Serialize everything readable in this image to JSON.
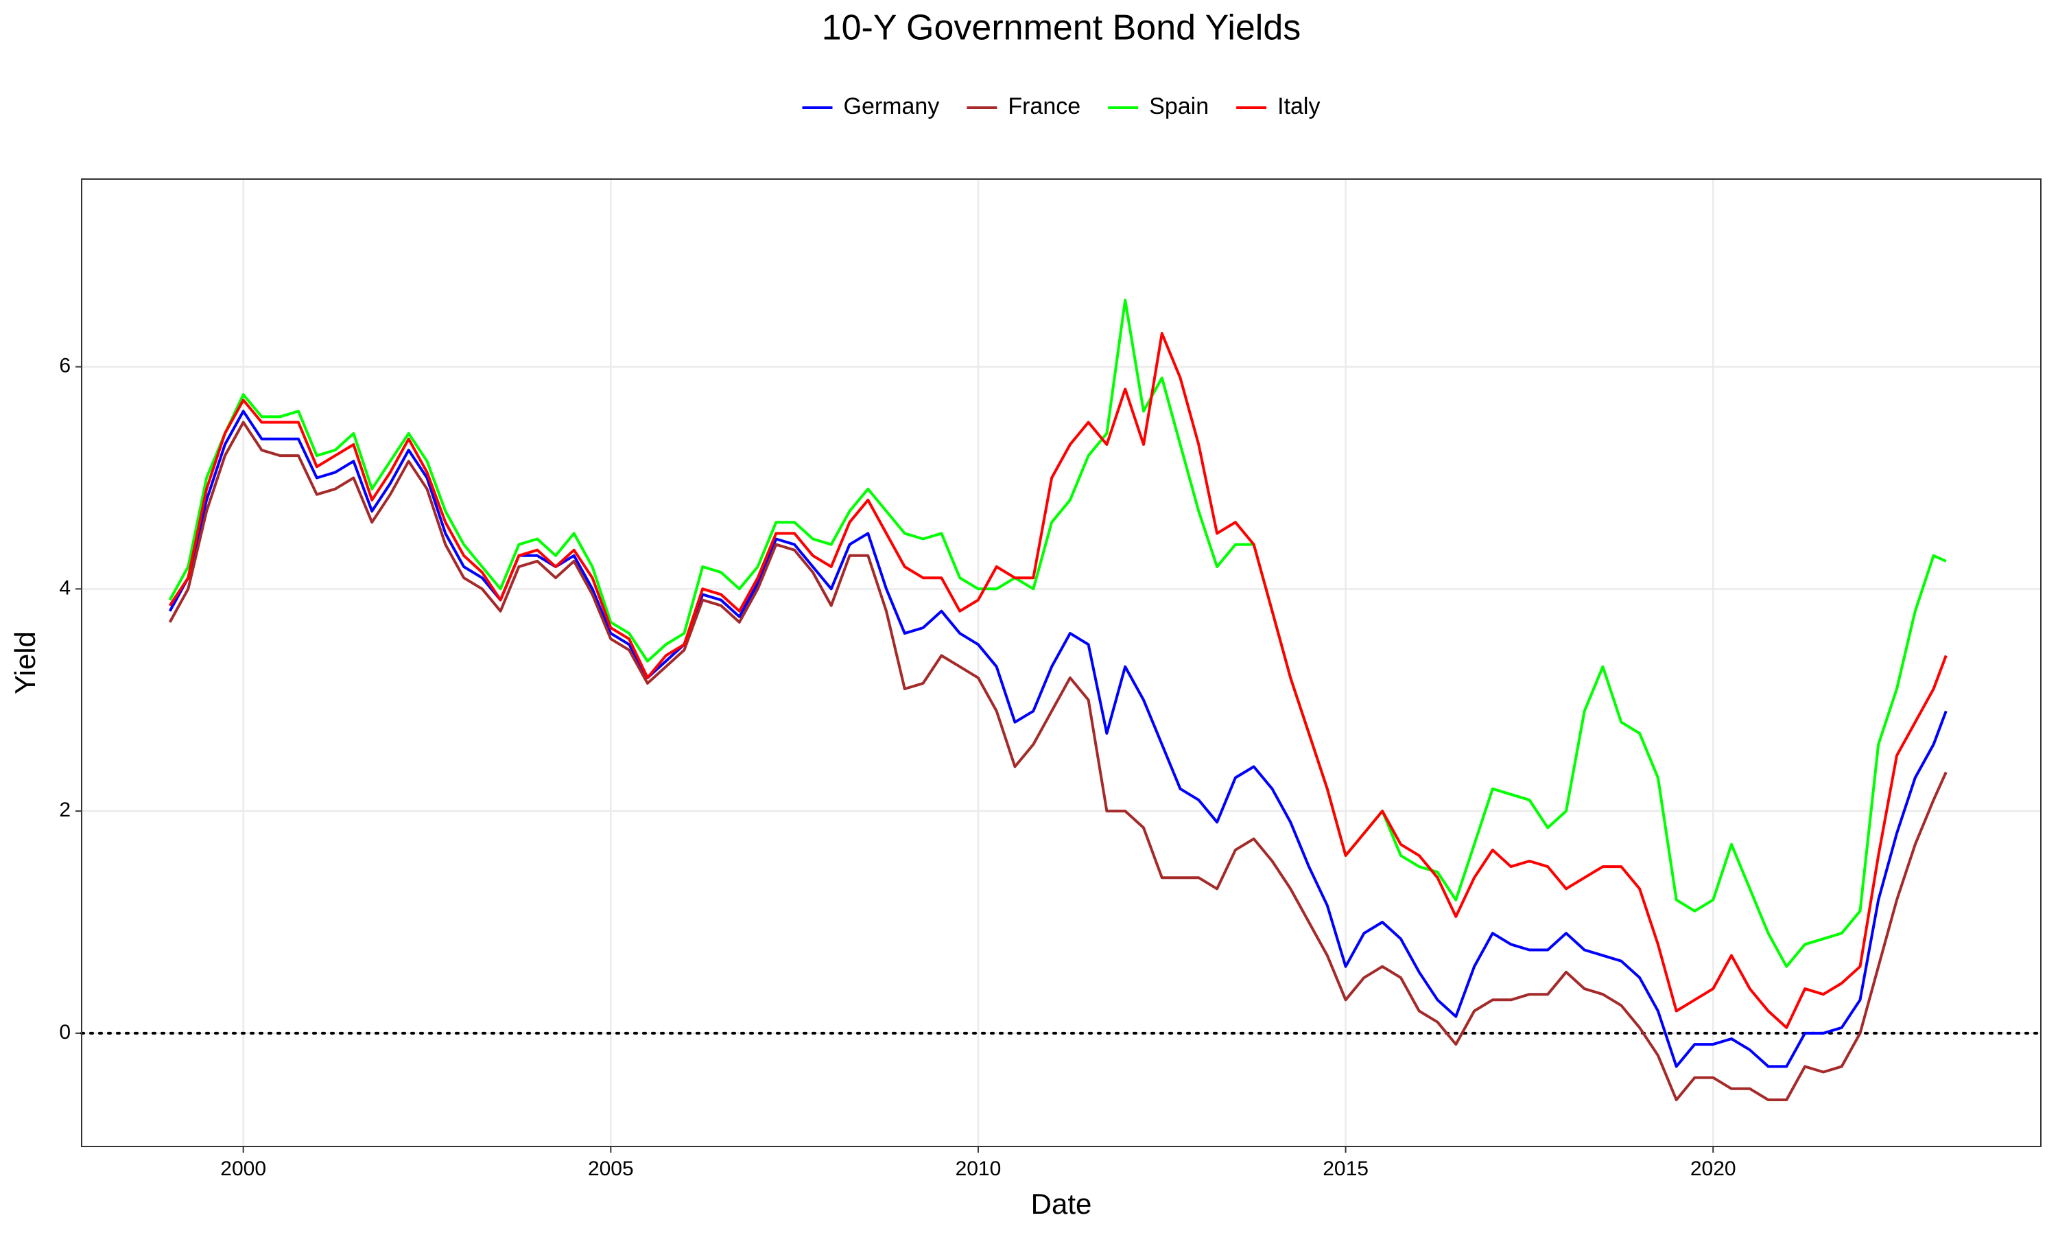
{
  "chart_data": {
    "type": "line",
    "title": "10-Y Government Bond Yields",
    "x_label": "Date",
    "y_label": "Yield",
    "x": [
      1999.0,
      1999.25,
      1999.5,
      1999.75,
      2000.0,
      2000.25,
      2000.5,
      2000.75,
      2001.0,
      2001.25,
      2001.5,
      2001.75,
      2002.0,
      2002.25,
      2002.5,
      2002.75,
      2003.0,
      2003.25,
      2003.5,
      2003.75,
      2004.0,
      2004.25,
      2004.5,
      2004.75,
      2005.0,
      2005.25,
      2005.5,
      2005.75,
      2006.0,
      2006.25,
      2006.5,
      2006.75,
      2007.0,
      2007.25,
      2007.5,
      2007.75,
      2008.0,
      2008.25,
      2008.5,
      2008.75,
      2009.0,
      2009.25,
      2009.5,
      2009.75,
      2010.0,
      2010.25,
      2010.5,
      2010.75,
      2011.0,
      2011.25,
      2011.5,
      2011.75,
      2012.0,
      2012.25,
      2012.5,
      2012.75,
      2013.0,
      2013.25,
      2013.5,
      2013.75,
      2014.0,
      2014.25,
      2014.5,
      2014.75,
      2015.0,
      2015.25,
      2015.5,
      2015.75,
      2016.0,
      2016.25,
      2016.5,
      2016.75,
      2017.0,
      2017.25,
      2017.5,
      2017.75,
      2018.0,
      2018.25,
      2018.5,
      2018.75,
      2019.0,
      2019.25,
      2019.5,
      2019.75,
      2020.0,
      2020.25,
      2020.5,
      2020.75,
      2021.0,
      2021.25,
      2021.5,
      2021.75,
      2022.0,
      2022.25,
      2022.5,
      2022.75,
      2023.0,
      2023.17
    ],
    "series": [
      {
        "name": "Germany",
        "color": "#0000ff",
        "values": [
          3.8,
          4.1,
          4.8,
          5.3,
          5.6,
          5.35,
          5.35,
          5.35,
          5.0,
          5.05,
          5.15,
          4.7,
          4.95,
          5.25,
          5.0,
          4.5,
          4.2,
          4.1,
          3.9,
          4.3,
          4.3,
          4.2,
          4.3,
          4.0,
          3.6,
          3.5,
          3.2,
          3.35,
          3.5,
          3.95,
          3.9,
          3.75,
          4.05,
          4.45,
          4.4,
          4.2,
          4.0,
          4.4,
          4.5,
          4.0,
          3.6,
          3.65,
          3.8,
          3.6,
          3.5,
          3.3,
          2.8,
          2.9,
          3.3,
          3.6,
          3.5,
          2.7,
          3.3,
          3.0,
          2.6,
          2.2,
          2.1,
          1.9,
          2.3,
          2.4,
          2.2,
          1.9,
          1.5,
          1.15,
          0.6,
          0.9,
          1.0,
          0.85,
          0.55,
          0.3,
          0.15,
          0.6,
          0.9,
          0.8,
          0.75,
          0.75,
          0.9,
          0.75,
          0.7,
          0.65,
          0.5,
          0.2,
          -0.3,
          -0.1,
          -0.1,
          -0.05,
          -0.15,
          -0.3,
          -0.3,
          0.0,
          0.0,
          0.05,
          0.3,
          1.2,
          1.8,
          2.3,
          2.6,
          2.9
        ]
      },
      {
        "name": "France",
        "color": "#a52a2a",
        "values": [
          3.7,
          4.0,
          4.7,
          5.2,
          5.5,
          5.25,
          5.2,
          5.2,
          4.85,
          4.9,
          5.0,
          4.6,
          4.85,
          5.15,
          4.9,
          4.4,
          4.1,
          4.0,
          3.8,
          4.2,
          4.25,
          4.1,
          4.25,
          3.95,
          3.55,
          3.45,
          3.15,
          3.3,
          3.45,
          3.9,
          3.85,
          3.7,
          4.0,
          4.4,
          4.35,
          4.15,
          3.85,
          4.3,
          4.3,
          3.8,
          3.1,
          3.15,
          3.4,
          3.3,
          3.2,
          2.9,
          2.4,
          2.6,
          2.9,
          3.2,
          3.0,
          2.0,
          2.0,
          1.85,
          1.4,
          1.4,
          1.4,
          1.3,
          1.65,
          1.75,
          1.55,
          1.3,
          1.0,
          0.7,
          0.3,
          0.5,
          0.6,
          0.5,
          0.2,
          0.1,
          -0.1,
          0.2,
          0.3,
          0.3,
          0.35,
          0.35,
          0.55,
          0.4,
          0.35,
          0.25,
          0.05,
          -0.2,
          -0.6,
          -0.4,
          -0.4,
          -0.5,
          -0.5,
          -0.6,
          -0.6,
          -0.3,
          -0.35,
          -0.3,
          0.0,
          0.6,
          1.2,
          1.7,
          2.1,
          2.35
        ]
      },
      {
        "name": "Spain",
        "color": "#00ff00",
        "values": [
          3.9,
          4.2,
          5.0,
          5.4,
          5.75,
          5.55,
          5.55,
          5.6,
          5.2,
          5.25,
          5.4,
          4.9,
          5.15,
          5.4,
          5.15,
          4.7,
          4.4,
          4.2,
          4.0,
          4.4,
          4.45,
          4.3,
          4.5,
          4.2,
          3.7,
          3.6,
          3.35,
          3.5,
          3.6,
          4.2,
          4.15,
          4.0,
          4.2,
          4.6,
          4.6,
          4.45,
          4.4,
          4.7,
          4.9,
          4.7,
          4.5,
          4.45,
          4.5,
          4.1,
          4.0,
          4.0,
          4.1,
          4.0,
          4.6,
          4.8,
          5.2,
          5.4,
          6.6,
          5.6,
          5.9,
          5.3,
          4.7,
          4.2,
          4.4,
          4.4,
          3.8,
          3.2,
          2.7,
          2.2,
          1.6,
          1.8,
          2.0,
          1.6,
          1.5,
          1.45,
          1.2,
          1.7,
          2.2,
          2.15,
          2.1,
          1.85,
          2.0,
          2.9,
          3.3,
          2.8,
          2.7,
          2.3,
          1.2,
          1.1,
          1.2,
          1.7,
          1.3,
          0.9,
          0.6,
          0.8,
          0.85,
          0.9,
          1.1,
          2.6,
          3.1,
          3.8,
          4.3,
          4.25
        ]
      },
      {
        "name": "Italy",
        "color": "#ff0000",
        "values": [
          3.85,
          4.1,
          4.9,
          5.4,
          5.7,
          5.5,
          5.5,
          5.5,
          5.1,
          5.2,
          5.3,
          4.8,
          5.05,
          5.35,
          5.05,
          4.6,
          4.3,
          4.15,
          3.9,
          4.3,
          4.35,
          4.2,
          4.35,
          4.1,
          3.65,
          3.55,
          3.2,
          3.4,
          3.5,
          4.0,
          3.95,
          3.8,
          4.1,
          4.5,
          4.5,
          4.3,
          4.2,
          4.6,
          4.8,
          4.5,
          4.2,
          4.1,
          4.1,
          3.8,
          3.9,
          4.2,
          4.1,
          4.1,
          5.0,
          5.3,
          5.5,
          5.3,
          5.8,
          5.3,
          6.3,
          5.9,
          5.3,
          4.5,
          4.6,
          4.4,
          3.8,
          3.2,
          2.7,
          2.2,
          1.6,
          1.8,
          2.0,
          1.7,
          1.6,
          1.4,
          1.05,
          1.4,
          1.65,
          1.5,
          1.55,
          1.5,
          1.3,
          1.4,
          1.5,
          1.5,
          1.3,
          0.8,
          0.2,
          0.3,
          0.4,
          0.7,
          0.4,
          0.2,
          0.05,
          0.4,
          0.35,
          0.45,
          0.6,
          1.6,
          2.5,
          2.8,
          3.1,
          3.4
        ]
      }
    ],
    "xlim": [
      1997.8,
      2024.46
    ],
    "ylim": [
      -1.02,
      7.69
    ],
    "xticks": [
      2000,
      2005,
      2010,
      2015,
      2020
    ],
    "yticks": [
      0,
      2,
      4,
      6
    ],
    "hline": 0,
    "grid": true,
    "legend": "top"
  }
}
